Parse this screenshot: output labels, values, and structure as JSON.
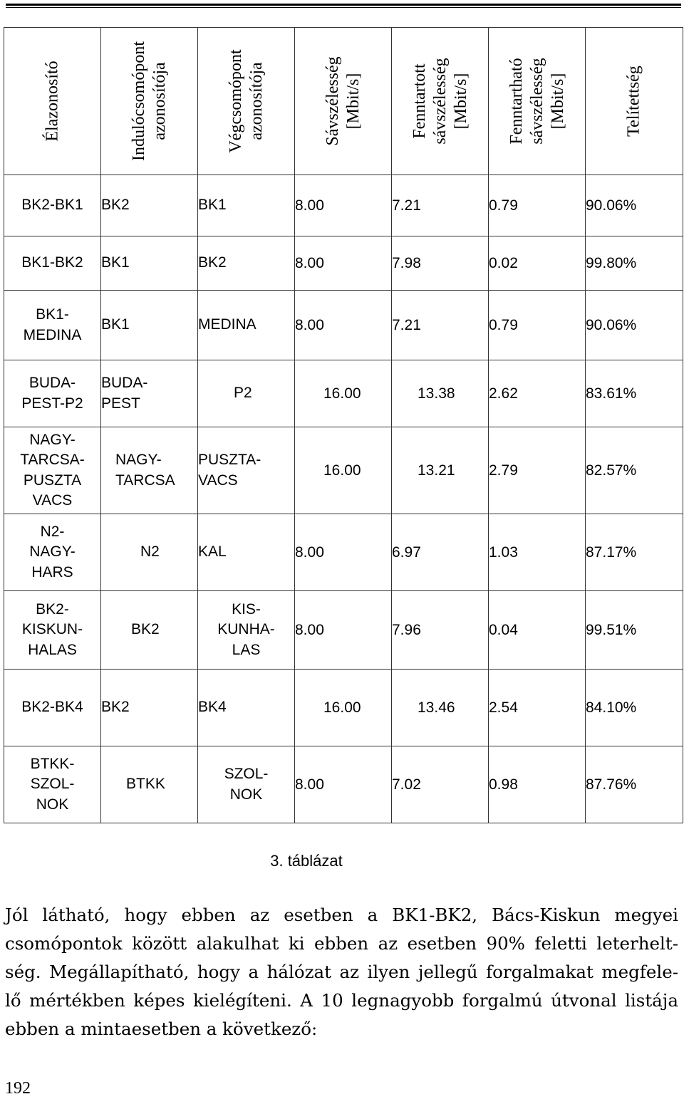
{
  "table": {
    "headers": [
      "Élazonosító",
      "Indulócsomópont\nazonosítója",
      "Végcsomópont\nazonosítója",
      "Sávszélesség\n[Mbit/s]",
      "Fenntartott\nsávszélesség\n[Mbit/s]",
      "Fenntartható\nsávszélesség\n[Mbit/s]",
      "Telítettség"
    ],
    "rows": [
      [
        "BK2-BK1",
        "BK2",
        "BK1",
        "8.00",
        "7.21",
        "0.79",
        "90.06%"
      ],
      [
        "BK1-BK2",
        "BK1",
        "BK2",
        "8.00",
        "7.98",
        "0.02",
        "99.80%"
      ],
      [
        "BK1-\nMEDINA",
        "BK1",
        "MEDINA",
        "8.00",
        "7.21",
        "0.79",
        "90.06%"
      ],
      [
        "BUDA-\nPEST-P2",
        "BUDA-\nPEST",
        "P2",
        "16.00",
        "13.38",
        "2.62",
        "83.61%"
      ],
      [
        "NAGY-\nTARCSA-\nPUSZTA\nVACS",
        "NAGY-\nTARCSA",
        "PUSZTA-\nVACS",
        "16.00",
        "13.21",
        "2.79",
        "82.57%"
      ],
      [
        "N2-\nNAGY-\nHARS",
        "N2",
        "KAL",
        "8.00",
        "6.97",
        "1.03",
        "87.17%"
      ],
      [
        "BK2-\nKISKUN-\nHALAS",
        "BK2",
        "KIS-\nKUNHA-\nLAS",
        "8.00",
        "7.96",
        "0.04",
        "99.51%"
      ],
      [
        "BK2-BK4",
        "BK2",
        "BK4",
        "16.00",
        "13.46",
        "2.54",
        "84.10%"
      ],
      [
        "BTKK-\nSZOL-\nNOK",
        "BTKK",
        "SZOL-\nNOK",
        "8.00",
        "7.02",
        "0.98",
        "87.76%"
      ]
    ]
  },
  "caption": "3. táblázat",
  "paragraph_lines": [
    "Jól látható, hogy ebben az esetben a BK1-BK2, Bács-Kiskun megyei",
    "csomópontok között alakulhat ki ebben az esetben 90% feletti leterhelt-",
    "ség. Megállapítható, hogy a hálózat az ilyen jellegű forgalmakat megfele-",
    "lő mértékben képes kielégíteni. A 10 legnagyobb forgalmú útvonal listája",
    "ebben a mintaesetben a következő:"
  ],
  "page_number": "192"
}
